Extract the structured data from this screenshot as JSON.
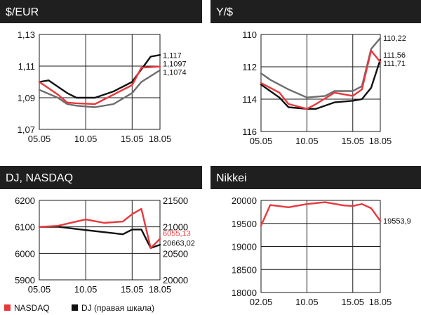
{
  "colors": {
    "red": "#e8383d",
    "black": "#111111",
    "gray": "#6d6d6d",
    "title_bg": "#1f1f1f"
  },
  "chart_data": [
    {
      "id": "usd_eur",
      "type": "line",
      "title": "$/EUR",
      "x_tick_labels": [
        "05.05",
        "10.05",
        "15.05",
        "18.05"
      ],
      "x_tick_positions": [
        0,
        5,
        10,
        13
      ],
      "y_ticks": [
        1.07,
        1.09,
        1.11,
        1.13
      ],
      "y_tick_labels": [
        "1,07",
        "1,09",
        "1,11",
        "1,13"
      ],
      "ylim": [
        1.07,
        1.13
      ],
      "xlim": [
        0,
        13
      ],
      "grid": true,
      "series": [
        {
          "color": "red",
          "x": [
            0,
            2,
            3,
            4,
            6,
            8,
            10,
            11,
            13
          ],
          "values": [
            1.1,
            1.092,
            1.087,
            1.0865,
            1.086,
            1.092,
            1.098,
            1.109,
            1.1097
          ],
          "end_label": "1,1097"
        },
        {
          "color": "black",
          "x": [
            0,
            1,
            3,
            4,
            6,
            8,
            10,
            12,
            13
          ],
          "values": [
            1.1,
            1.101,
            1.093,
            1.09,
            1.09,
            1.094,
            1.1,
            1.116,
            1.117
          ],
          "end_label": "1,117"
        },
        {
          "color": "gray",
          "x": [
            0,
            2,
            3,
            4,
            6,
            8,
            10,
            11,
            13
          ],
          "values": [
            1.095,
            1.09,
            1.086,
            1.085,
            1.084,
            1.086,
            1.093,
            1.1,
            1.1074
          ],
          "end_label": "1,1074"
        }
      ]
    },
    {
      "id": "usd_jpy",
      "type": "line",
      "title": "Y/$",
      "x_tick_labels": [
        "05.05",
        "10.05",
        "15.05",
        "18.05"
      ],
      "x_tick_positions": [
        0,
        5,
        10,
        13
      ],
      "y_ticks": [
        110,
        112,
        114,
        116
      ],
      "y_tick_labels": [
        "110",
        "112",
        "114",
        "116"
      ],
      "ylim": [
        110,
        116
      ],
      "y_inverted": true,
      "xlim": [
        0,
        13
      ],
      "grid": true,
      "series": [
        {
          "color": "red",
          "x": [
            0,
            2,
            3,
            5,
            6,
            8,
            10,
            11,
            12,
            13
          ],
          "values": [
            113.0,
            113.6,
            114.3,
            114.6,
            114.3,
            113.6,
            113.8,
            113.4,
            111.0,
            111.71
          ],
          "end_label": "111,71"
        },
        {
          "color": "black",
          "x": [
            0,
            2,
            3,
            5,
            6,
            8,
            10,
            11,
            12,
            13
          ],
          "values": [
            113.1,
            113.9,
            114.5,
            114.6,
            114.6,
            114.2,
            114.1,
            114.0,
            113.3,
            111.56
          ],
          "end_label": "111,56"
        },
        {
          "color": "gray",
          "x": [
            0,
            1,
            3,
            5,
            7,
            8,
            10,
            11,
            12,
            13
          ],
          "values": [
            112.4,
            112.8,
            113.4,
            113.9,
            113.8,
            113.5,
            113.5,
            113.2,
            110.9,
            110.22
          ],
          "end_label": "110,22"
        }
      ]
    },
    {
      "id": "dj_nasdaq",
      "type": "line",
      "title": "DJ, NASDAQ",
      "x_tick_labels": [
        "05.05",
        "10.05",
        "15.05",
        "18.05"
      ],
      "x_tick_positions": [
        0,
        5,
        10,
        13
      ],
      "y_ticks": [
        5900,
        6000,
        6100,
        6200
      ],
      "y_tick_labels": [
        "5900",
        "6000",
        "6100",
        "6200"
      ],
      "ylim": [
        5900,
        6200
      ],
      "y2_ticks": [
        20000,
        20500,
        21000,
        21500
      ],
      "y2_tick_labels": [
        "20000",
        "20500",
        "21000",
        "21500"
      ],
      "y2lim": [
        20000,
        21500
      ],
      "xlim": [
        0,
        13
      ],
      "grid": true,
      "series": [
        {
          "name": "NASDAQ",
          "color": "red",
          "axis": "left",
          "x": [
            0,
            2,
            4,
            5,
            7,
            9,
            10,
            11,
            12,
            13
          ],
          "values": [
            6100,
            6104,
            6120,
            6128,
            6115,
            6120,
            6148,
            6168,
            6020,
            6055.13
          ],
          "end_label": "6055,13"
        },
        {
          "name": "DJ (правая шкала)",
          "color": "black",
          "axis": "right",
          "x": [
            0,
            2,
            4,
            5,
            7,
            9,
            10,
            11,
            12,
            13
          ],
          "values": [
            21000,
            21003,
            20960,
            20940,
            20900,
            20860,
            20950,
            20950,
            20600,
            20663.02
          ],
          "end_label": "20663,02"
        }
      ]
    },
    {
      "id": "nikkei",
      "type": "line",
      "title": "Nikkei",
      "x_tick_labels": [
        "02.05",
        "10.05",
        "15.05",
        "18.05"
      ],
      "x_tick_positions": [
        0,
        5,
        10,
        13
      ],
      "y_ticks": [
        18000,
        18500,
        19000,
        19500,
        20000
      ],
      "y_tick_labels": [
        "18000",
        "18500",
        "19000",
        "19500",
        "20000"
      ],
      "ylim": [
        18000,
        20000
      ],
      "xlim": [
        0,
        13
      ],
      "grid": true,
      "series": [
        {
          "color": "red",
          "x": [
            0,
            1,
            3,
            5,
            7,
            9,
            10,
            11,
            12,
            13
          ],
          "values": [
            19450,
            19900,
            19850,
            19920,
            19960,
            19890,
            19880,
            19920,
            19830,
            19553.9
          ],
          "end_label": "19553,9"
        }
      ]
    }
  ],
  "legend": {
    "position": "bottom-left",
    "items": [
      {
        "label": "NASDAQ",
        "color": "red"
      },
      {
        "label": "DJ (правая шкала)",
        "color": "black"
      }
    ]
  }
}
